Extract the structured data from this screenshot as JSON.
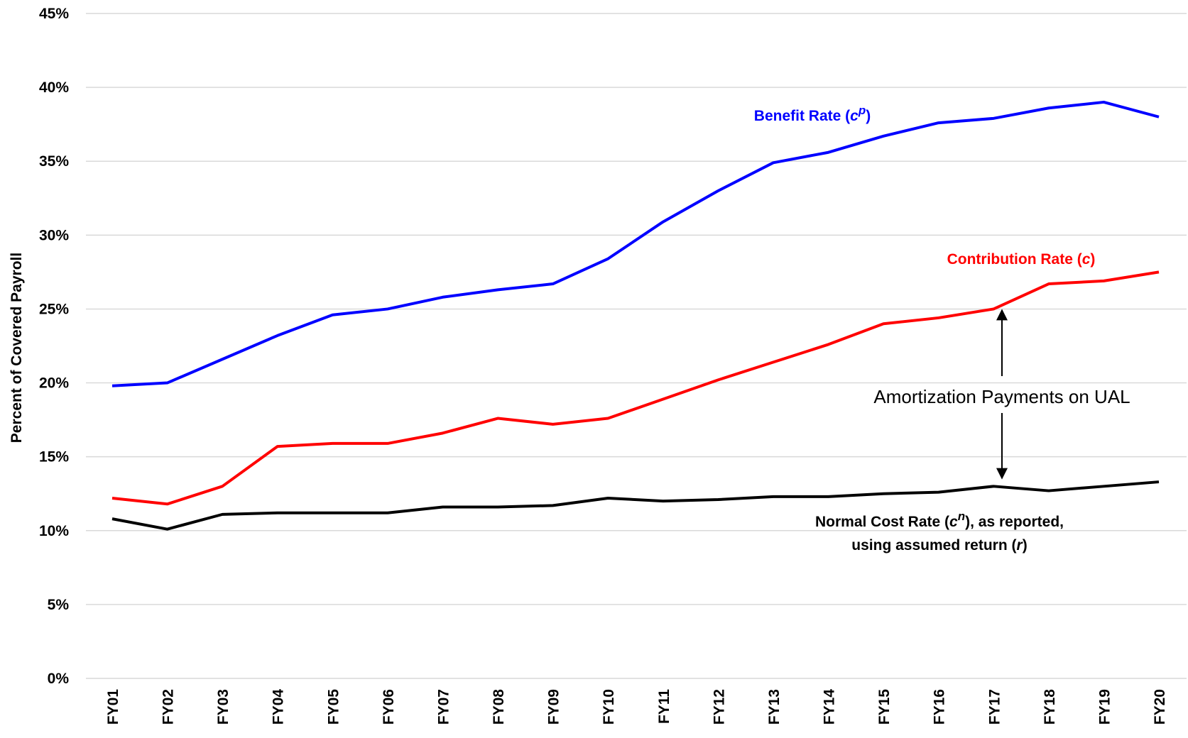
{
  "chart_data": {
    "type": "line",
    "y_label": "Percent of Covered Payroll",
    "categories": [
      "FY01",
      "FY02",
      "FY03",
      "FY04",
      "FY05",
      "FY06",
      "FY07",
      "FY08",
      "FY09",
      "FY10",
      "FY11",
      "FY12",
      "FY13",
      "FY14",
      "FY15",
      "FY16",
      "FY17",
      "FY18",
      "FY19",
      "FY20"
    ],
    "ylim": [
      0,
      45
    ],
    "yticks": [
      {
        "value": 0,
        "label": "0%"
      },
      {
        "value": 5,
        "label": "5%"
      },
      {
        "value": 10,
        "label": "10%"
      },
      {
        "value": 15,
        "label": "15%"
      },
      {
        "value": 20,
        "label": "20%"
      },
      {
        "value": 25,
        "label": "25%"
      },
      {
        "value": 30,
        "label": "30%"
      },
      {
        "value": 35,
        "label": "35%"
      },
      {
        "value": 40,
        "label": "40%"
      },
      {
        "value": 45,
        "label": "45%"
      }
    ],
    "grid": true,
    "series": [
      {
        "color": "#0000ff",
        "label": [
          [
            {
              "text": "Benefit Rate ("
            },
            {
              "text": "c",
              "style": "italic"
            },
            {
              "text": "p",
              "style": "sup"
            },
            {
              "text": ")"
            }
          ]
        ],
        "values": [
          19.8,
          20.0,
          21.6,
          23.2,
          24.6,
          25.0,
          25.8,
          26.3,
          26.7,
          28.4,
          30.9,
          33.0,
          34.9,
          35.6,
          36.7,
          37.6,
          37.9,
          38.6,
          39.0,
          38.0
        ]
      },
      {
        "color": "#ff0000",
        "label": [
          [
            {
              "text": "Contribution Rate ("
            },
            {
              "text": "c",
              "style": "italic"
            },
            {
              "text": ")"
            }
          ]
        ],
        "values": [
          12.2,
          11.8,
          13.0,
          15.7,
          15.9,
          15.9,
          16.6,
          17.6,
          17.2,
          17.6,
          18.9,
          20.2,
          21.4,
          22.6,
          24.0,
          24.4,
          25.0,
          26.7,
          26.9,
          27.5
        ]
      },
      {
        "color": "#000000",
        "label": [
          [
            {
              "text": "Normal Cost Rate ("
            },
            {
              "text": "c",
              "style": "italic"
            },
            {
              "text": "n",
              "style": "sup"
            },
            {
              "text": "), as reported,"
            }
          ],
          [
            {
              "text": "using assumed return ("
            },
            {
              "text": "r",
              "style": "italic"
            },
            {
              "text": ")"
            }
          ]
        ],
        "values": [
          10.8,
          10.1,
          11.1,
          11.2,
          11.2,
          11.2,
          11.6,
          11.6,
          11.7,
          12.2,
          12.0,
          12.1,
          12.3,
          12.3,
          12.5,
          12.6,
          13.0,
          12.7,
          13.0,
          13.3
        ]
      }
    ],
    "annotation": "Amortization Payments on UAL"
  }
}
